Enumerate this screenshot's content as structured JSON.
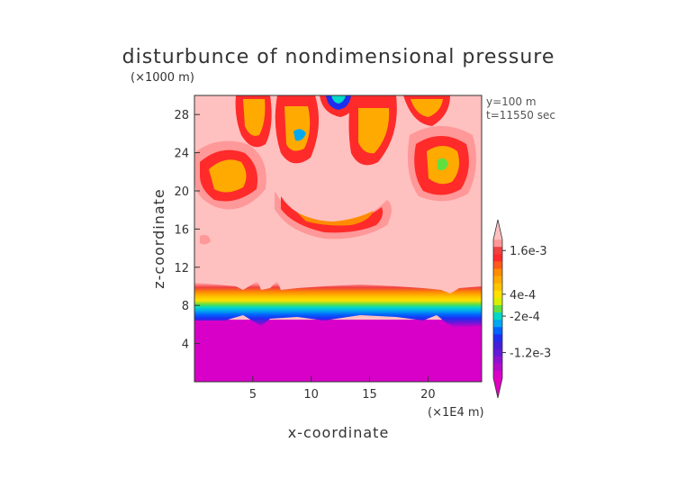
{
  "chart_data": {
    "type": "heatmap",
    "title": "disturbunce of nondimensional pressure",
    "xlabel": "x-coordinate",
    "ylabel": "z-coordinate",
    "x_unit": "(×1E4 m)",
    "y_unit": "(×1000 m)",
    "xlim": [
      0,
      24.6
    ],
    "ylim": [
      0,
      30
    ],
    "xticks": [
      5,
      10,
      15,
      20
    ],
    "yticks": [
      4,
      8,
      12,
      16,
      20,
      24,
      28
    ],
    "info": [
      "y=100 m",
      "t=11550 sec"
    ],
    "colorbar": {
      "labels": [
        {
          "text": "1.6e-3",
          "value": 0.0016
        },
        {
          "text": "4e-4",
          "value": 0.0004
        },
        {
          "text": "-2e-4",
          "value": -0.0002
        },
        {
          "text": "-1.2e-3",
          "value": -0.0012
        }
      ],
      "levels": [
        {
          "value": 0.002,
          "color": "#ffc0c0"
        },
        {
          "value": 0.0018,
          "color": "#ff9898"
        },
        {
          "value": 0.0016,
          "color": "#f04040"
        },
        {
          "value": 0.0014,
          "color": "#ff2a2a"
        },
        {
          "value": 0.0012,
          "color": "#ff5a1a"
        },
        {
          "value": 0.001,
          "color": "#ff8c00"
        },
        {
          "value": 0.0008,
          "color": "#ffaa00"
        },
        {
          "value": 0.0006,
          "color": "#ffc400"
        },
        {
          "value": 0.0004,
          "color": "#ffe000"
        },
        {
          "value": 0.0002,
          "color": "#d8ee00"
        },
        {
          "value": 0.0,
          "color": "#60e040"
        },
        {
          "value": -0.0002,
          "color": "#00d8c8"
        },
        {
          "value": -0.0004,
          "color": "#00a8f0"
        },
        {
          "value": -0.0006,
          "color": "#0064ff"
        },
        {
          "value": -0.0008,
          "color": "#1e2ef0"
        },
        {
          "value": -0.001,
          "color": "#4420d8"
        },
        {
          "value": -0.0012,
          "color": "#6418d8"
        },
        {
          "value": -0.0014,
          "color": "#8e10d0"
        },
        {
          "value": -0.0016,
          "color": "#b408c8"
        },
        {
          "value": -0.0018,
          "color": "#d800c8"
        },
        {
          "value": -0.002,
          "color": "#e000c0"
        }
      ]
    },
    "regions": [
      {
        "name": "background",
        "color": "#ffc0c0"
      },
      {
        "name": "lower-negative",
        "color": "#d800c8",
        "z_range": [
          0,
          6
        ]
      },
      {
        "name": "transition-band",
        "z_range": [
          6,
          10
        ]
      },
      {
        "name": "upper-positive-features",
        "color": "#ff2a2a",
        "z_range": [
          15,
          30
        ]
      }
    ]
  }
}
